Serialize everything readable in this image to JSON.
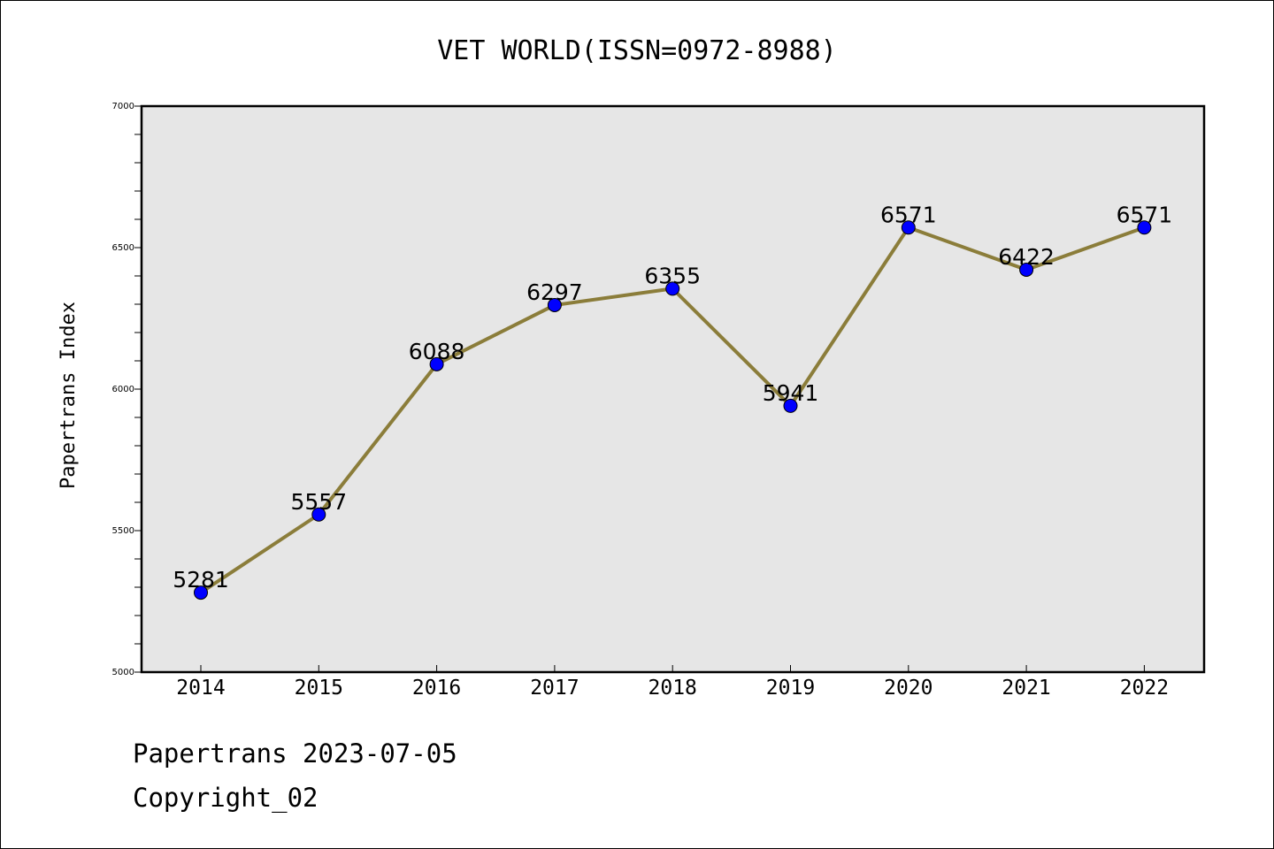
{
  "chart_data": {
    "type": "line",
    "title": "VET WORLD(ISSN=0972-8988)",
    "ylabel": "Papertrans Index",
    "xlabel": "",
    "categories": [
      "2014",
      "2015",
      "2016",
      "2017",
      "2018",
      "2019",
      "2020",
      "2021",
      "2022"
    ],
    "values": [
      5281,
      5557,
      6088,
      6297,
      6355,
      5941,
      6571,
      6422,
      6571
    ],
    "data_labels": [
      "5281",
      "5557",
      "6088",
      "6297",
      "6355",
      "5941",
      "6571",
      "6422",
      "6571"
    ],
    "ylim": [
      5000,
      7000
    ],
    "yticks": [
      5000,
      5500,
      6000,
      6500,
      7000
    ],
    "ytick_labels": [
      "5000",
      "5500",
      "6000",
      "6500",
      "7000"
    ],
    "grid": false,
    "colors": {
      "line": "#8b7d3a",
      "marker": "#0000ff",
      "plot_background": "#e6e6e6"
    }
  },
  "footer": {
    "source": "Papertrans 2023-07-05",
    "copyright": "Copyright_02"
  }
}
